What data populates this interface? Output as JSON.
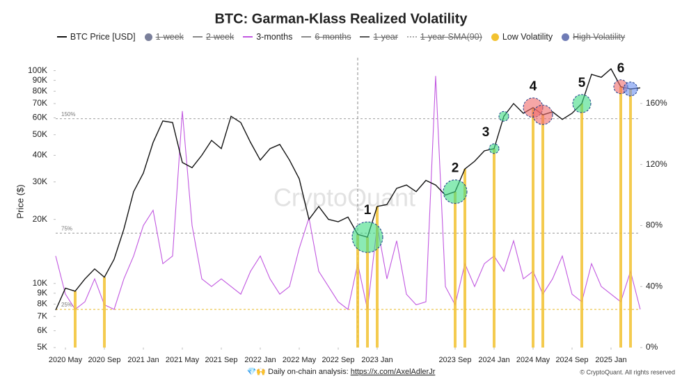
{
  "chart_data": {
    "type": "line",
    "title": "BTC: Garman-Klass Realized Volatility",
    "y_label": "Price ($)",
    "watermark": "CryptoQuant",
    "log_y": true,
    "xlim": [
      "2020-04",
      "2025-04"
    ],
    "ylim": [
      5000,
      115000
    ],
    "y2lim": [
      0,
      190
    ],
    "xticks": [
      {
        "value": "2020-05",
        "label": "2020 May"
      },
      {
        "value": "2020-09",
        "label": "2020 Sep"
      },
      {
        "value": "2021-01",
        "label": "2021 Jan"
      },
      {
        "value": "2021-05",
        "label": "2021 May"
      },
      {
        "value": "2021-09",
        "label": "2021 Sep"
      },
      {
        "value": "2022-01",
        "label": "2022 Jan"
      },
      {
        "value": "2022-05",
        "label": "2022 May"
      },
      {
        "value": "2022-09",
        "label": "2022 Sep"
      },
      {
        "value": "2023-01",
        "label": "2023 Jan"
      },
      {
        "value": "2023-09",
        "label": "2023 Sep"
      },
      {
        "value": "2024-01",
        "label": "2024 Jan"
      },
      {
        "value": "2024-05",
        "label": "2024 May"
      },
      {
        "value": "2024-09",
        "label": "2024 Sep"
      },
      {
        "value": "2025-01",
        "label": "2025 Jan"
      }
    ],
    "yticks": [
      {
        "value": 5000,
        "label": "5K"
      },
      {
        "value": 6000,
        "label": "6K"
      },
      {
        "value": 7000,
        "label": "7K"
      },
      {
        "value": 8000,
        "label": "8K"
      },
      {
        "value": 9000,
        "label": "9K"
      },
      {
        "value": 10000,
        "label": "10K"
      },
      {
        "value": 20000,
        "label": "20K"
      },
      {
        "value": 30000,
        "label": "30K"
      },
      {
        "value": 40000,
        "label": "40K"
      },
      {
        "value": 50000,
        "label": "50K"
      },
      {
        "value": 60000,
        "label": "60K"
      },
      {
        "value": 70000,
        "label": "70K"
      },
      {
        "value": 80000,
        "label": "80K"
      },
      {
        "value": 90000,
        "label": "90K"
      },
      {
        "value": 100000,
        "label": "100K"
      }
    ],
    "y2ticks": [
      {
        "value": 0,
        "label": "0%"
      },
      {
        "value": 40,
        "label": "40%"
      },
      {
        "value": 80,
        "label": "80%"
      },
      {
        "value": 120,
        "label": "120%"
      },
      {
        "value": 160,
        "label": "160%"
      }
    ],
    "ref_lines": [
      {
        "value": 150,
        "label": "150%",
        "color": "#999999"
      },
      {
        "value": 75,
        "label": "75%",
        "color": "#999999"
      },
      {
        "value": 25,
        "label": "25%",
        "color": "#e8b820"
      }
    ],
    "vline": "2022-11",
    "x": [
      "2020-04",
      "2020-05",
      "2020-06",
      "2020-07",
      "2020-08",
      "2020-09",
      "2020-10",
      "2020-11",
      "2020-12",
      "2021-01",
      "2021-02",
      "2021-03",
      "2021-04",
      "2021-05",
      "2021-06",
      "2021-07",
      "2021-08",
      "2021-09",
      "2021-10",
      "2021-11",
      "2021-12",
      "2022-01",
      "2022-02",
      "2022-03",
      "2022-04",
      "2022-05",
      "2022-06",
      "2022-07",
      "2022-08",
      "2022-09",
      "2022-10",
      "2022-11",
      "2022-12",
      "2023-01",
      "2023-02",
      "2023-03",
      "2023-04",
      "2023-05",
      "2023-06",
      "2023-07",
      "2023-08",
      "2023-09",
      "2023-10",
      "2023-11",
      "2023-12",
      "2024-01",
      "2024-02",
      "2024-03",
      "2024-04",
      "2024-05",
      "2024-06",
      "2024-07",
      "2024-08",
      "2024-09",
      "2024-10",
      "2024-11",
      "2024-12",
      "2025-01",
      "2025-02",
      "2025-03",
      "2025-04"
    ],
    "series": [
      {
        "name": "BTC Price [USD]",
        "color": "#111111",
        "style": "line",
        "values": [
          7500,
          9500,
          9200,
          10500,
          11700,
          10700,
          13000,
          18000,
          27000,
          33000,
          46000,
          58000,
          57000,
          37000,
          35000,
          40000,
          47000,
          43000,
          61000,
          57000,
          46000,
          38000,
          43000,
          45000,
          38000,
          31000,
          20000,
          23000,
          20000,
          19500,
          20500,
          17000,
          16500,
          23000,
          23500,
          28000,
          29000,
          27000,
          30500,
          29000,
          26000,
          27000,
          34500,
          37500,
          42000,
          43000,
          61000,
          70000,
          63000,
          67000,
          62000,
          64000,
          59000,
          63000,
          70000,
          96000,
          93000,
          102000,
          84000,
          82000,
          83000
        ]
      },
      {
        "name": "1-week",
        "color": "#7a7f9a",
        "style": "dot",
        "hidden": true
      },
      {
        "name": "2-week",
        "color": "#888888",
        "style": "line",
        "hidden": true
      },
      {
        "name": "3-months",
        "color": "#c157e0",
        "style": "line",
        "axis": "y2",
        "values": [
          60,
          35,
          25,
          30,
          45,
          28,
          25,
          45,
          60,
          80,
          90,
          55,
          60,
          155,
          80,
          45,
          40,
          45,
          40,
          35,
          50,
          60,
          45,
          35,
          40,
          65,
          85,
          50,
          40,
          30,
          25,
          55,
          25,
          80,
          45,
          70,
          35,
          28,
          30,
          178,
          40,
          28,
          55,
          40,
          55,
          60,
          50,
          70,
          45,
          50,
          35,
          45,
          60,
          35,
          30,
          55,
          40,
          35,
          30,
          50,
          25
        ]
      },
      {
        "name": "6-months",
        "color": "#888888",
        "style": "line",
        "hidden": true
      },
      {
        "name": "1-year",
        "color": "#555555",
        "style": "line",
        "hidden": true
      },
      {
        "name": "1-year-SMA(90)",
        "color": "#aaaaaa",
        "style": "dotted",
        "hidden": true
      },
      {
        "name": "Low Volatility",
        "color": "#f2c230",
        "style": "dot",
        "x": [
          "2020-06",
          "2020-09",
          "2022-11",
          "2022-12",
          "2023-01",
          "2023-09",
          "2023-10",
          "2024-01",
          "2024-05",
          "2024-06",
          "2024-10",
          "2025-02",
          "2025-03"
        ]
      },
      {
        "name": "High Volatility",
        "color": "#6f7bb5",
        "style": "dot",
        "hidden": true
      }
    ],
    "annotations": [
      {
        "label": "1",
        "points": [
          {
            "x": "2022-12",
            "color": "#3ddc84"
          }
        ]
      },
      {
        "label": "2",
        "points": [
          {
            "x": "2023-09",
            "color": "#3ddc84"
          }
        ]
      },
      {
        "label": "3",
        "points": [
          {
            "x": "2024-01",
            "color": "#3ddc84"
          },
          {
            "x": "2024-02",
            "color": "#3ddc84"
          }
        ]
      },
      {
        "label": "4",
        "points": [
          {
            "x": "2024-05",
            "color": "#f06a6a"
          },
          {
            "x": "2024-06",
            "color": "#f06a6a"
          }
        ]
      },
      {
        "label": "5",
        "points": [
          {
            "x": "2024-10",
            "color": "#3ddc84"
          }
        ]
      },
      {
        "label": "6",
        "points": [
          {
            "x": "2025-02",
            "color": "#f06a6a"
          },
          {
            "x": "2025-03",
            "color": "#6a8ff0"
          }
        ]
      }
    ]
  },
  "footer": {
    "text": "💎🙌 Daily on-chain analysis:",
    "link": "https://x.com/AxelAdlerJr",
    "copyright": "© CryptoQuant. All rights reserved"
  }
}
